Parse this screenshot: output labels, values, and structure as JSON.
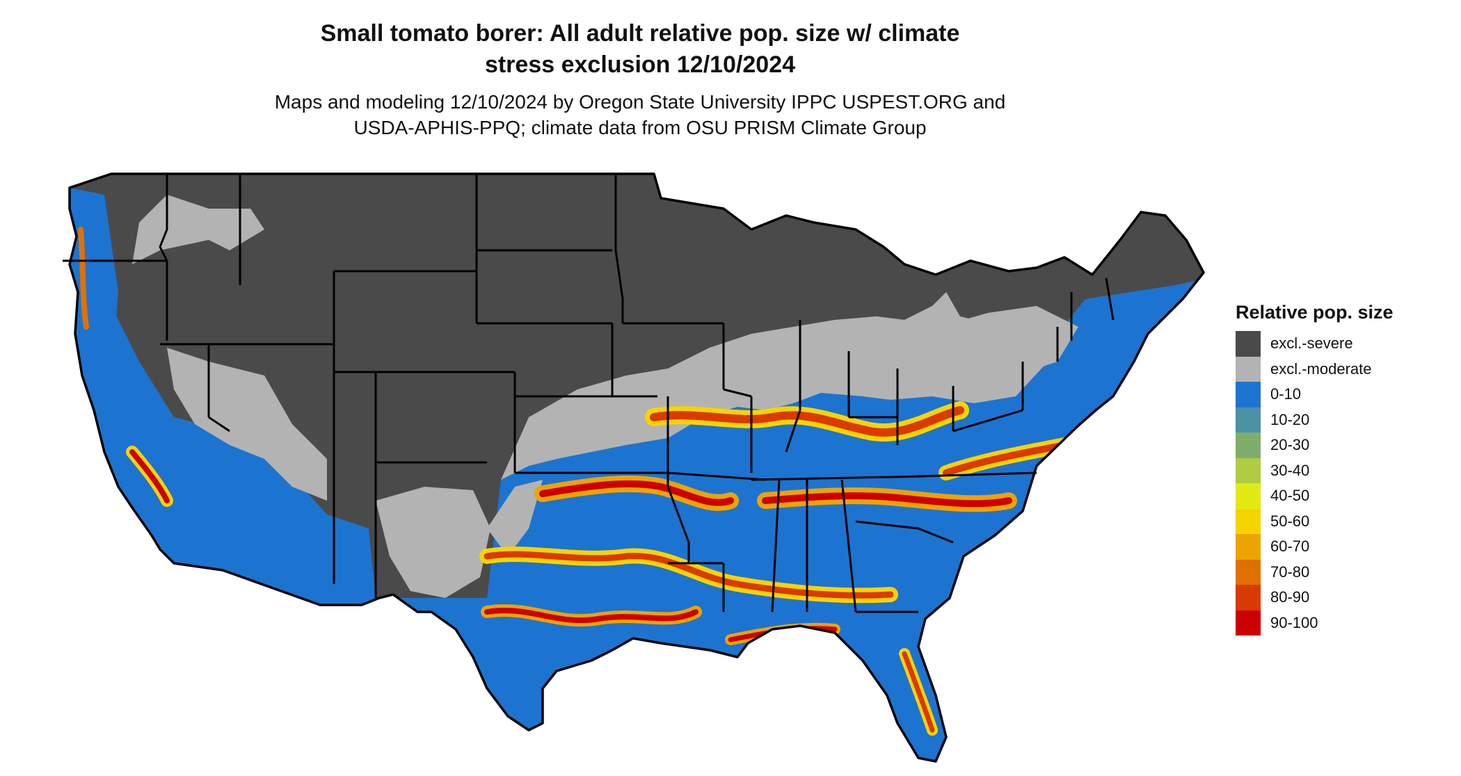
{
  "title": {
    "line1": "Small tomato borer: All adult relative pop. size w/ climate",
    "line2": "stress exclusion 12/10/2024"
  },
  "subtitle": {
    "line1": "Maps and modeling 12/10/2024 by Oregon State University IPPC USPEST.ORG and",
    "line2": "USDA-APHIS-PPQ; climate data from OSU PRISM Climate Group"
  },
  "legend": {
    "title": "Relative pop. size",
    "items": [
      {
        "label": "excl.-severe",
        "color": "#4a4a4a"
      },
      {
        "label": "excl.-moderate",
        "color": "#b3b3b3"
      },
      {
        "label": "0-10",
        "color": "#1c74d0"
      },
      {
        "label": "10-20",
        "color": "#4b92a4"
      },
      {
        "label": "20-30",
        "color": "#7fae6c"
      },
      {
        "label": "30-40",
        "color": "#b0cc43"
      },
      {
        "label": "40-50",
        "color": "#e2ea16"
      },
      {
        "label": "50-60",
        "color": "#f6d400"
      },
      {
        "label": "60-70",
        "color": "#eca400"
      },
      {
        "label": "70-80",
        "color": "#e17000"
      },
      {
        "label": "80-90",
        "color": "#d93a00"
      },
      {
        "label": "90-100",
        "color": "#cc0000"
      }
    ]
  }
}
